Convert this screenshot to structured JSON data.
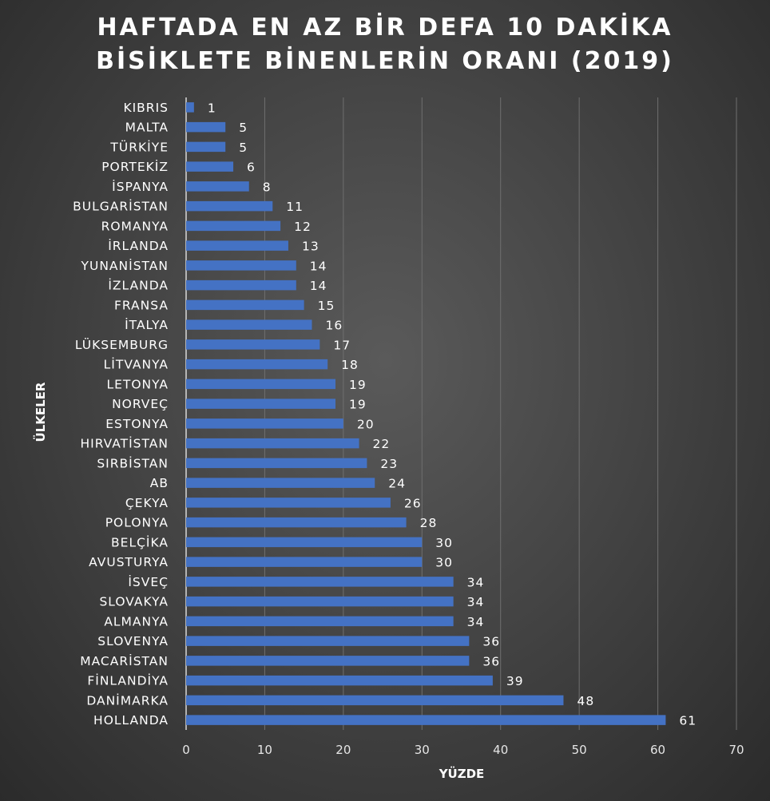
{
  "chart_data": {
    "type": "bar",
    "orientation": "horizontal",
    "title_line1": "HAFTADA EN AZ BİR DEFA 10 DAKİKA",
    "title_line2": "BİSİKLETE BİNENLERİN ORANI (2019)",
    "xlabel": "YÜZDE",
    "ylabel": "ÜLKELER",
    "xlim": [
      0,
      70
    ],
    "xticks": [
      0,
      10,
      20,
      30,
      40,
      50,
      60,
      70
    ],
    "grid": true,
    "bar_color": "#4472c4",
    "categories": [
      "KIBRIS",
      "MALTA",
      "TÜRKİYE",
      "PORTEKİZ",
      "İSPANYA",
      "BULGARİSTAN",
      "ROMANYA",
      "İRLANDA",
      "YUNANİSTAN",
      "İZLANDA",
      "FRANSA",
      "İTALYA",
      "LÜKSEMBURG",
      "LİTVANYA",
      "LETONYA",
      "NORVEÇ",
      "ESTONYA",
      "HIRVATİSTAN",
      "SIRBİSTAN",
      "AB",
      "ÇEKYA",
      "POLONYA",
      "BELÇİKA",
      "AVUSTURYA",
      "İSVEÇ",
      "SLOVAKYA",
      "ALMANYA",
      "SLOVENYA",
      "MACARİSTAN",
      "FİNLANDİYA",
      "DANİMARKA",
      "HOLLANDA"
    ],
    "values": [
      1,
      5,
      5,
      6,
      8,
      11,
      12,
      13,
      14,
      14,
      15,
      16,
      17,
      18,
      19,
      19,
      20,
      22,
      23,
      24,
      26,
      28,
      30,
      30,
      34,
      34,
      34,
      36,
      36,
      39,
      48,
      61
    ]
  }
}
